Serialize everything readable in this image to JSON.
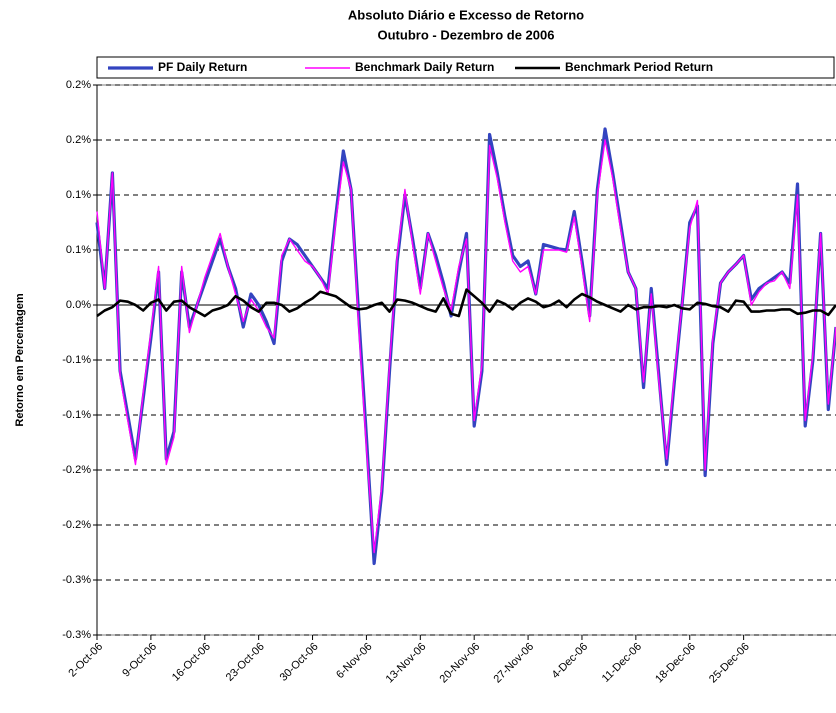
{
  "chart_data": {
    "type": "line",
    "title": "Absoluto Diário e Excesso de Retorno",
    "subtitle": "Outubro - Dezembro de 2006",
    "y_label": "Retorno em Percentagem",
    "legend": "top",
    "grid": true,
    "categories": [
      "2-Oct-06",
      null,
      null,
      null,
      null,
      null,
      null,
      "9-Oct-06",
      null,
      null,
      null,
      null,
      null,
      null,
      "16-Oct-06",
      null,
      null,
      null,
      null,
      null,
      null,
      "23-Oct-06",
      null,
      null,
      null,
      null,
      null,
      null,
      "30-Oct-06",
      null,
      null,
      null,
      null,
      null,
      null,
      "6-Nov-06",
      null,
      null,
      null,
      null,
      null,
      null,
      "13-Nov-06",
      null,
      null,
      null,
      null,
      null,
      null,
      "20-Nov-06",
      null,
      null,
      null,
      null,
      null,
      null,
      "27-Nov-06",
      null,
      null,
      null,
      null,
      null,
      null,
      "4-Dec-06",
      null,
      null,
      null,
      null,
      null,
      null,
      "11-Dec-06",
      null,
      null,
      null,
      null,
      null,
      null,
      "18-Dec-06",
      null,
      null,
      null,
      null,
      null,
      null,
      "25-Dec-06",
      null,
      null,
      null,
      null,
      null,
      null,
      null,
      null,
      null,
      null,
      null,
      null
    ],
    "ylim": [
      -0.3,
      0.2
    ],
    "yticks": [
      {
        "value": 0.2,
        "label": "0.2%"
      },
      {
        "value": 0.15,
        "label": "0.2%"
      },
      {
        "value": 0.1,
        "label": "0.1%"
      },
      {
        "value": 0.05,
        "label": "0.1%"
      },
      {
        "value": 0,
        "label": "0.0%"
      },
      {
        "value": -0.05,
        "label": "-0.1%"
      },
      {
        "value": -0.1,
        "label": "-0.1%"
      },
      {
        "value": -0.15,
        "label": "-0.2%"
      },
      {
        "value": -0.2,
        "label": "-0.2%"
      },
      {
        "value": -0.25,
        "label": "-0.3%"
      },
      {
        "value": -0.3,
        "label": "-0.3%"
      }
    ],
    "series": [
      {
        "name": "PF Daily Return",
        "color": "#3344c0",
        "linewidth": 3.2,
        "values": [
          0.075,
          0.015,
          0.12,
          -0.06,
          -0.1,
          -0.14,
          -0.085,
          -0.03,
          0.03,
          -0.14,
          -0.115,
          0.03,
          -0.02,
          0.0,
          0.02,
          0.04,
          0.06,
          0.035,
          0.015,
          -0.02,
          0.01,
          0.0,
          -0.015,
          -0.035,
          0.04,
          0.06,
          0.055,
          0.045,
          0.035,
          0.025,
          0.015,
          0.08,
          0.14,
          0.105,
          -0.01,
          -0.12,
          -0.235,
          -0.17,
          -0.06,
          0.04,
          0.1,
          0.06,
          0.015,
          0.065,
          0.045,
          0.02,
          -0.01,
          0.03,
          0.065,
          -0.11,
          -0.06,
          0.155,
          0.12,
          0.08,
          0.045,
          0.035,
          0.04,
          0.01,
          0.055,
          0.053,
          0.051,
          0.05,
          0.085,
          0.04,
          -0.01,
          0.105,
          0.16,
          0.12,
          0.075,
          0.03,
          0.015,
          -0.075,
          0.015,
          -0.065,
          -0.145,
          -0.07,
          0.0,
          0.075,
          0.09,
          -0.155,
          -0.035,
          0.02,
          0.03,
          0.037,
          0.045,
          0.005,
          0.015,
          0.02,
          0.025,
          0.03,
          0.02,
          0.11,
          -0.11,
          -0.05,
          0.065,
          -0.095,
          -0.02
        ]
      },
      {
        "name": "Benchmark Daily Return",
        "color": "#ff00ff",
        "linewidth": 1.4,
        "values": [
          0.085,
          0.015,
          0.12,
          -0.065,
          -0.105,
          -0.145,
          -0.08,
          -0.025,
          0.035,
          -0.145,
          -0.12,
          0.035,
          -0.025,
          0.0,
          0.025,
          0.045,
          0.065,
          0.035,
          0.01,
          -0.015,
          0.005,
          -0.005,
          -0.02,
          -0.03,
          0.045,
          0.06,
          0.05,
          0.04,
          0.035,
          0.025,
          0.01,
          0.075,
          0.13,
          0.105,
          -0.02,
          -0.13,
          -0.225,
          -0.165,
          -0.055,
          0.045,
          0.105,
          0.055,
          0.01,
          0.065,
          0.04,
          0.015,
          -0.005,
          0.035,
          0.06,
          -0.105,
          -0.055,
          0.145,
          0.115,
          0.075,
          0.04,
          0.03,
          0.035,
          0.01,
          0.05,
          0.05,
          0.05,
          0.048,
          0.08,
          0.035,
          -0.015,
          0.1,
          0.15,
          0.115,
          0.07,
          0.03,
          0.015,
          -0.07,
          0.01,
          -0.07,
          -0.14,
          -0.065,
          0.0,
          0.07,
          0.095,
          -0.15,
          -0.03,
          0.02,
          0.03,
          0.037,
          0.045,
          0.0,
          0.012,
          0.02,
          0.022,
          0.03,
          0.015,
          0.1,
          -0.105,
          -0.045,
          0.065,
          -0.09,
          -0.02
        ]
      },
      {
        "name": "Benchmark Period Return",
        "color": "#000000",
        "linewidth": 2.6,
        "values": [
          -0.01,
          -0.005,
          -0.002,
          0.004,
          0.003,
          0.0,
          -0.005,
          0.002,
          0.005,
          -0.005,
          0.003,
          0.004,
          -0.002,
          -0.006,
          -0.01,
          -0.005,
          -0.003,
          0.0,
          0.008,
          0.004,
          -0.002,
          -0.006,
          0.002,
          0.002,
          0.0,
          -0.006,
          -0.003,
          0.002,
          0.006,
          0.012,
          0.01,
          0.008,
          0.003,
          -0.002,
          -0.004,
          -0.003,
          0.0,
          0.002,
          -0.006,
          0.005,
          0.004,
          0.002,
          -0.001,
          -0.004,
          -0.006,
          0.006,
          -0.008,
          -0.01,
          0.014,
          0.008,
          0.002,
          -0.006,
          0.004,
          0.001,
          -0.004,
          0.002,
          0.006,
          0.003,
          -0.002,
          0.0,
          0.004,
          -0.002,
          0.005,
          0.01,
          0.007,
          0.003,
          0.0,
          -0.003,
          -0.006,
          0.0,
          -0.004,
          -0.002,
          -0.002,
          -0.001,
          -0.002,
          0.0,
          -0.003,
          -0.004,
          0.002,
          0.001,
          -0.001,
          -0.002,
          -0.006,
          0.004,
          0.003,
          -0.006,
          -0.006,
          -0.005,
          -0.005,
          -0.004,
          -0.004,
          -0.008,
          -0.007,
          -0.005,
          -0.005,
          -0.009,
          0.0
        ]
      }
    ]
  }
}
